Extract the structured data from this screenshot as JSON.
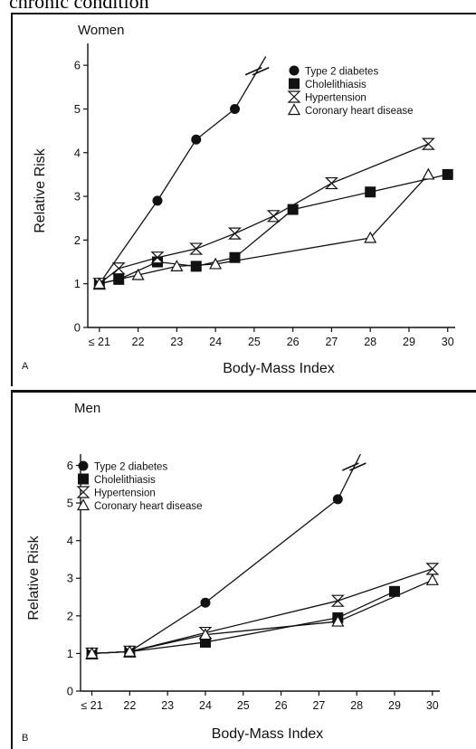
{
  "caption_text": "chronic condition",
  "chart_data": [
    {
      "type": "line",
      "panel_label": "A",
      "title": "Women",
      "xlabel": "Body-Mass Index",
      "ylabel": "Relative Risk",
      "xlim": [
        20.7,
        30.1
      ],
      "ylim": [
        0,
        6.5
      ],
      "x_ticks": [
        21,
        22,
        23,
        24,
        25,
        26,
        27,
        28,
        29,
        30
      ],
      "x_tick_labels": [
        "≤ 21",
        "22",
        "23",
        "24",
        "25",
        "26",
        "27",
        "28",
        "29",
        "30"
      ],
      "y_ticks": [
        0,
        1,
        2,
        3,
        4,
        5,
        6
      ],
      "y_tick_labels": [
        "0",
        "1",
        "2",
        "3",
        "4",
        "5",
        "6"
      ],
      "legend_position": "top-right",
      "series": [
        {
          "name": "Type 2 diabetes",
          "marker": "circle",
          "points": [
            [
              21,
              1.0
            ],
            [
              22.5,
              2.9
            ],
            [
              23.5,
              4.3
            ],
            [
              24.5,
              5.0
            ]
          ],
          "continuation": [
            [
              25.3,
              6.2
            ]
          ],
          "break_marker": true
        },
        {
          "name": "Cholelithiasis",
          "marker": "square",
          "points": [
            [
              21,
              1.0
            ],
            [
              21.5,
              1.1
            ],
            [
              22.5,
              1.5
            ],
            [
              23.5,
              1.4
            ],
            [
              24.5,
              1.6
            ],
            [
              26,
              2.7
            ],
            [
              28,
              3.1
            ],
            [
              30,
              3.5
            ]
          ]
        },
        {
          "name": "Hypertension",
          "marker": "hourglass",
          "points": [
            [
              21,
              1.0
            ],
            [
              21.5,
              1.35
            ],
            [
              22.5,
              1.6
            ],
            [
              23.5,
              1.8
            ],
            [
              24.5,
              2.15
            ],
            [
              25.5,
              2.55
            ],
            [
              27,
              3.3
            ],
            [
              29.5,
              4.2
            ]
          ]
        },
        {
          "name": "Coronary heart disease",
          "marker": "triangle",
          "points": [
            [
              21,
              1.0
            ],
            [
              22,
              1.2
            ],
            [
              23,
              1.4
            ],
            [
              24,
              1.45
            ],
            [
              28,
              2.05
            ],
            [
              29.5,
              3.5
            ]
          ]
        }
      ]
    },
    {
      "type": "line",
      "panel_label": "B",
      "title": "Men",
      "xlabel": "Body-Mass Index",
      "ylabel": "Relative Risk",
      "xlim": [
        20.7,
        30.1
      ],
      "ylim": [
        0,
        6.3
      ],
      "x_ticks": [
        21,
        22,
        23,
        24,
        25,
        26,
        27,
        28,
        29,
        30
      ],
      "x_tick_labels": [
        "≤ 21",
        "22",
        "23",
        "24",
        "25",
        "26",
        "27",
        "28",
        "29",
        "30"
      ],
      "y_ticks": [
        0,
        1,
        2,
        3,
        4,
        5,
        6
      ],
      "y_tick_labels": [
        "0",
        "1",
        "2",
        "3",
        "4",
        "5",
        "6"
      ],
      "legend_position": "top-left",
      "series": [
        {
          "name": "Type 2 diabetes",
          "marker": "circle",
          "points": [
            [
              21,
              1.0
            ],
            [
              22,
              1.05
            ],
            [
              24,
              2.35
            ],
            [
              27.5,
              5.1
            ]
          ],
          "continuation": [
            [
              28.1,
              6.3
            ]
          ],
          "break_marker": true
        },
        {
          "name": "Cholelithiasis",
          "marker": "square",
          "points": [
            [
              21,
              1.0
            ],
            [
              22,
              1.05
            ],
            [
              24,
              1.3
            ],
            [
              27.5,
              1.95
            ],
            [
              29,
              2.65
            ]
          ]
        },
        {
          "name": "Hypertension",
          "marker": "hourglass",
          "points": [
            [
              21,
              1.0
            ],
            [
              22,
              1.05
            ],
            [
              24,
              1.55
            ],
            [
              27.5,
              2.4
            ],
            [
              30,
              3.25
            ]
          ]
        },
        {
          "name": "Coronary heart disease",
          "marker": "triangle",
          "points": [
            [
              21,
              1.0
            ],
            [
              22,
              1.05
            ],
            [
              24,
              1.5
            ],
            [
              27.5,
              1.85
            ],
            [
              30,
              2.95
            ]
          ]
        }
      ]
    }
  ]
}
